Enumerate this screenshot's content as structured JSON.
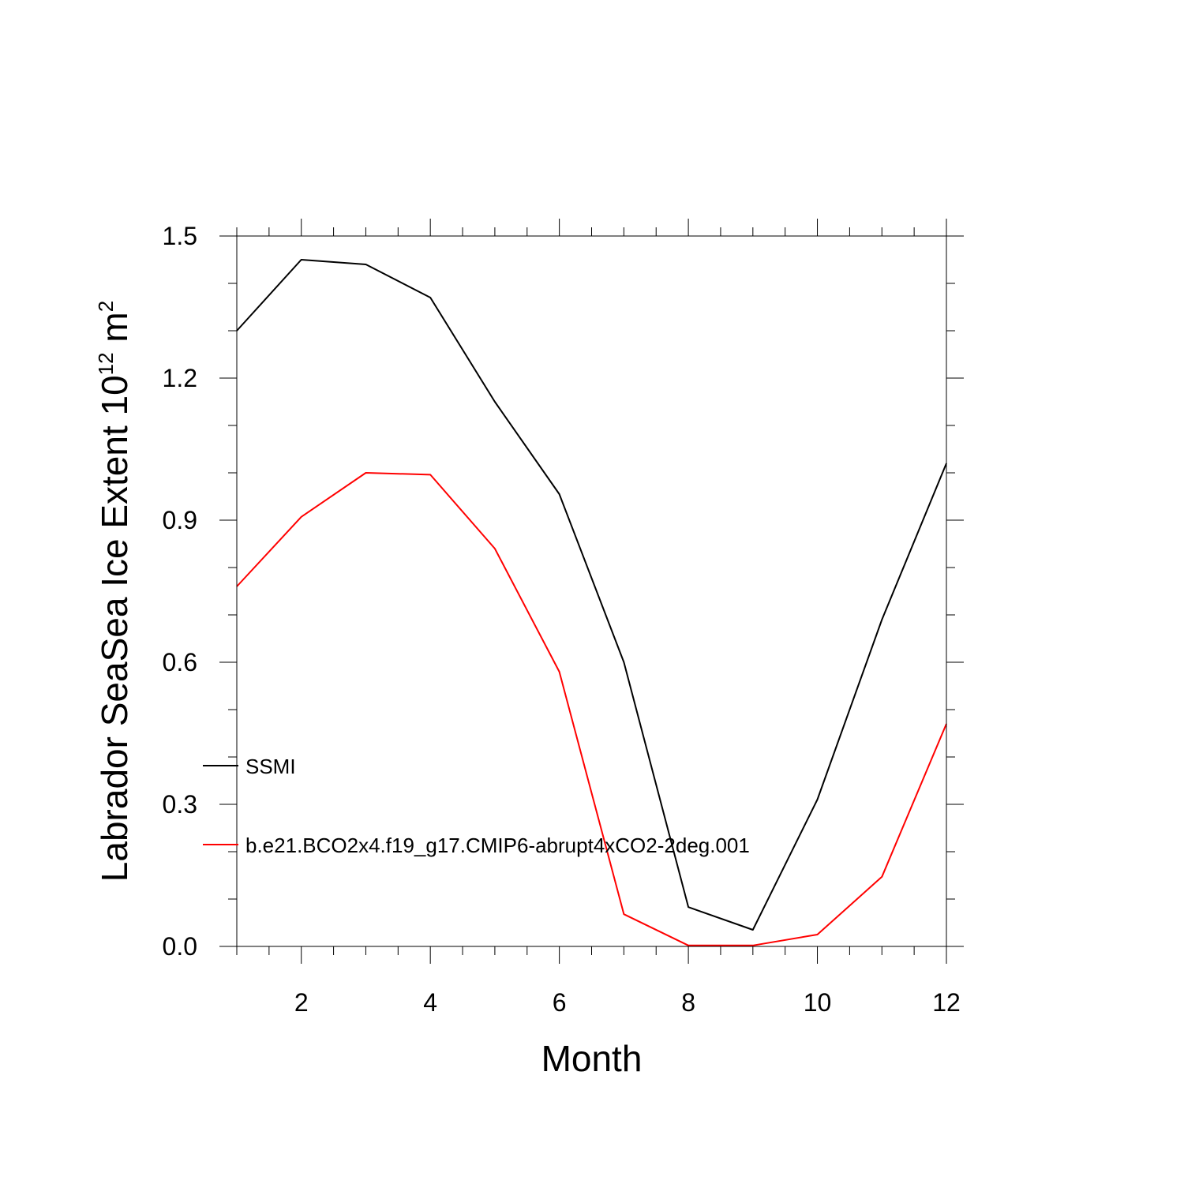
{
  "chart_data": {
    "type": "line",
    "title": "",
    "xlabel": "Month",
    "ylabel_main": "Labrador SeaSea Ice Extent 10",
    "ylabel_sup": "12",
    "ylabel_unit": " m",
    "ylabel_unit_sup": "2",
    "x": [
      1,
      2,
      3,
      4,
      5,
      6,
      7,
      8,
      9,
      10,
      11,
      12
    ],
    "xlim": [
      1,
      12
    ],
    "ylim": [
      0,
      1.5
    ],
    "xticks": [
      2,
      4,
      6,
      8,
      10,
      12
    ],
    "xtick_labels": [
      "2",
      "4",
      "6",
      "8",
      "10",
      "12"
    ],
    "yticks": [
      0,
      0.3,
      0.6,
      0.9,
      1.2,
      1.5
    ],
    "ytick_labels": [
      "0.0",
      "0.3",
      "0.6",
      "0.9",
      "1.2",
      "1.5"
    ],
    "grid": false,
    "legend_position": "lower-left",
    "series": [
      {
        "name": "SSMI",
        "color": "#000000",
        "values": [
          1.3,
          1.45,
          1.44,
          1.37,
          1.15,
          0.955,
          0.6,
          0.083,
          0.035,
          0.31,
          0.69,
          1.02
        ]
      },
      {
        "name": "b.e21.BCO2x4.f19_g17.CMIP6-abrupt4xCO2-2deg.001",
        "color": "#ff0000",
        "values": [
          0.76,
          0.907,
          1.0,
          0.996,
          0.84,
          0.58,
          0.068,
          0.002,
          0.002,
          0.025,
          0.147,
          0.47
        ]
      }
    ]
  }
}
